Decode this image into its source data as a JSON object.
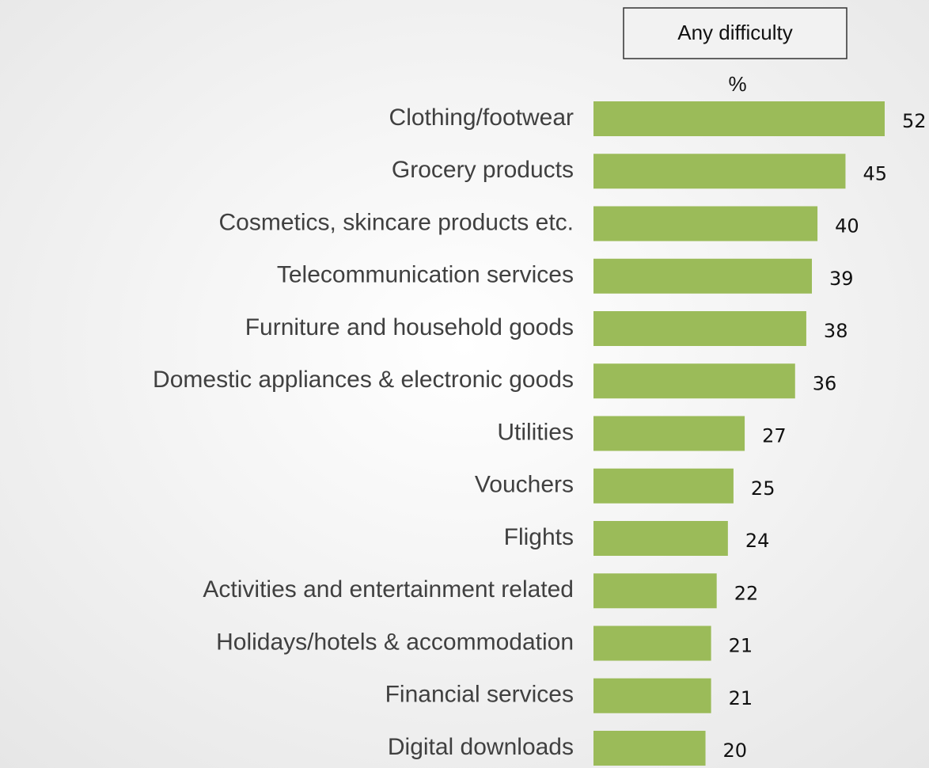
{
  "chart_data": {
    "type": "barh",
    "series_name": "Any difficulty",
    "unit_label": "%",
    "categories": [
      "Clothing/footwear",
      "Grocery products",
      "Cosmetics, skincare products etc.",
      "Telecommunication services",
      "Furniture and household goods",
      "Domestic appliances & electronic goods",
      "Utilities",
      "Vouchers",
      "Flights",
      "Activities and entertainment related",
      "Holidays/hotels & accommodation",
      "Financial services",
      "Digital downloads"
    ],
    "values": [
      52,
      45,
      40,
      39,
      38,
      36,
      27,
      25,
      24,
      22,
      21,
      21,
      20
    ],
    "color": "#9bbb59"
  }
}
